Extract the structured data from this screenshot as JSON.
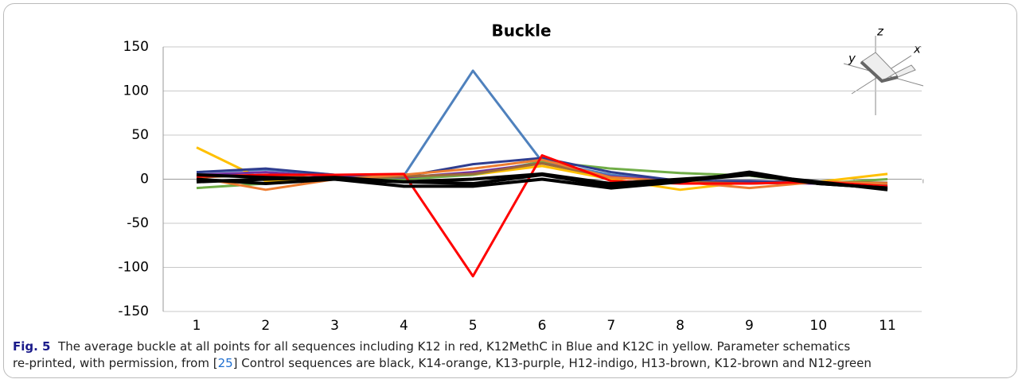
{
  "chart_data": {
    "type": "line",
    "title": "Buckle",
    "categories": [
      "1",
      "2",
      "3",
      "4",
      "5",
      "6",
      "7",
      "8",
      "9",
      "10",
      "11"
    ],
    "ylim": [
      -150,
      150
    ],
    "yticks": [
      -150,
      -100,
      -50,
      0,
      50,
      100,
      150
    ],
    "grid": true,
    "series": [
      {
        "color": "#4f81bd",
        "values": [
          8,
          11,
          5,
          4,
          123,
          20,
          5,
          -2,
          -3,
          -5,
          -5
        ]
      },
      {
        "color": "#ffc000",
        "values": [
          36,
          -2,
          2,
          2,
          5,
          15,
          0,
          -12,
          -3,
          -3,
          6
        ]
      },
      {
        "color": "#70ad47",
        "values": [
          -10,
          -5,
          0,
          0,
          5,
          20,
          12,
          7,
          4,
          -5,
          0
        ]
      },
      {
        "color": "#7030a0",
        "values": [
          5,
          8,
          3,
          2,
          8,
          18,
          3,
          -2,
          -4,
          -5,
          -4
        ]
      },
      {
        "color": "#2f3d8f",
        "values": [
          8,
          12,
          5,
          3,
          17,
          24,
          8,
          -2,
          -2,
          -4,
          -6
        ]
      },
      {
        "color": "#9c6a3a",
        "values": [
          2,
          5,
          0,
          3,
          6,
          18,
          2,
          -3,
          -5,
          -3,
          -4
        ]
      },
      {
        "color": "#ed7d31",
        "values": [
          2,
          -12,
          0,
          5,
          12,
          22,
          2,
          -3,
          -10,
          -3,
          -5
        ]
      },
      {
        "color": "#ff0000",
        "values": [
          3,
          5,
          5,
          6,
          -110,
          27,
          -2,
          -5,
          -5,
          -3,
          -8
        ]
      },
      {
        "color": "#000000",
        "values": [
          0,
          -5,
          0,
          -8,
          -8,
          0,
          -10,
          -3,
          8,
          -5,
          -10
        ]
      },
      {
        "color": "#000000",
        "values": [
          -3,
          0,
          2,
          -3,
          -5,
          5,
          -8,
          -2,
          5,
          -5,
          -10
        ]
      },
      {
        "color": "#000000",
        "values": [
          5,
          2,
          0,
          -3,
          0,
          6,
          -5,
          0,
          5,
          -3,
          -12
        ]
      }
    ],
    "annotations": [
      "z",
      "y",
      "x"
    ]
  },
  "caption": {
    "label": "Fig. 5",
    "text1": "The average buckle at all points for all sequences including K12 in red, K12MethC in Blue and K12C in yellow. Parameter schematics",
    "text2": "re-printed, with permission, from [",
    "ref": "25",
    "text3": "] Control sequences are black, K14-orange, K13-purple, H12-indigo, H13-brown, K12-brown and N12-green"
  }
}
